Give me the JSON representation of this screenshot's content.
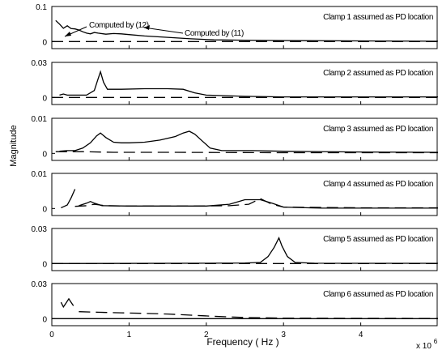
{
  "figure": {
    "ylabel": "Magnitude",
    "xlabel": "Frequency ( Hz )",
    "x_multiplier": "x 10",
    "x_multiplier_exp": "6"
  },
  "chart_data": [
    {
      "type": "line",
      "panel_label": "Clamp 1 assumed as PD location",
      "ylim": [
        -0.02,
        0.1
      ],
      "yticks": [
        {
          "v": 0,
          "t": "0"
        },
        {
          "v": 0.1,
          "t": "0.1"
        }
      ],
      "xlim": [
        0,
        5
      ],
      "xticks": [],
      "annotations": [
        {
          "text": "Computed by (12)"
        },
        {
          "text": "Computed by (11)"
        }
      ],
      "series": [
        {
          "style": "solid",
          "points": [
            [
              0.05,
              0.06
            ],
            [
              0.1,
              0.05
            ],
            [
              0.15,
              0.038
            ],
            [
              0.2,
              0.045
            ],
            [
              0.25,
              0.037
            ],
            [
              0.3,
              0.036
            ],
            [
              0.35,
              0.033
            ],
            [
              0.4,
              0.028
            ],
            [
              0.45,
              0.024
            ],
            [
              0.5,
              0.022
            ],
            [
              0.55,
              0.026
            ],
            [
              0.6,
              0.024
            ],
            [
              0.7,
              0.021
            ],
            [
              0.8,
              0.023
            ],
            [
              0.9,
              0.022
            ],
            [
              1.0,
              0.02
            ],
            [
              1.2,
              0.016
            ],
            [
              1.5,
              0.012
            ],
            [
              1.8,
              0.008
            ],
            [
              2.1,
              0.005
            ],
            [
              2.5,
              0.004
            ],
            [
              3.0,
              0.003
            ],
            [
              4.0,
              0.002
            ],
            [
              5.0,
              0.001
            ]
          ]
        },
        {
          "style": "dashed",
          "points": [
            [
              0.0,
              0.0
            ],
            [
              5.0,
              0.0
            ]
          ]
        }
      ]
    },
    {
      "type": "line",
      "panel_label": "Clamp 2 assumed as PD location",
      "ylim": [
        -0.006,
        0.03
      ],
      "yticks": [
        {
          "v": 0,
          "t": "0"
        },
        {
          "v": 0.03,
          "t": "0.03"
        }
      ],
      "xlim": [
        0,
        5
      ],
      "xticks": [],
      "series": [
        {
          "style": "solid",
          "points": [
            [
              0.1,
              0.002
            ],
            [
              0.15,
              0.003
            ],
            [
              0.2,
              0.002
            ],
            [
              0.3,
              0.002
            ],
            [
              0.45,
              0.002
            ],
            [
              0.55,
              0.006
            ],
            [
              0.6,
              0.016
            ],
            [
              0.63,
              0.022
            ],
            [
              0.67,
              0.013
            ],
            [
              0.72,
              0.007
            ],
            [
              0.9,
              0.007
            ],
            [
              1.2,
              0.0075
            ],
            [
              1.5,
              0.0075
            ],
            [
              1.7,
              0.007
            ],
            [
              1.85,
              0.004
            ],
            [
              2.0,
              0.002
            ],
            [
              2.5,
              0.001
            ],
            [
              3.0,
              0.0005
            ],
            [
              4.0,
              0.0005
            ],
            [
              5.0,
              0.0005
            ]
          ]
        },
        {
          "style": "dashed",
          "points": [
            [
              0.0,
              0.0
            ],
            [
              5.0,
              0.0
            ]
          ]
        }
      ]
    },
    {
      "type": "line",
      "panel_label": "Clamp 3 assumed as PD location",
      "ylim": [
        -0.002,
        0.01
      ],
      "yticks": [
        {
          "v": 0,
          "t": "0"
        },
        {
          "v": 0.01,
          "t": "0.01"
        }
      ],
      "xlim": [
        0,
        5
      ],
      "xticks": [],
      "series": [
        {
          "style": "solid",
          "points": [
            [
              0.1,
              0.0006
            ],
            [
              0.2,
              0.0008
            ],
            [
              0.3,
              0.0008
            ],
            [
              0.4,
              0.0015
            ],
            [
              0.5,
              0.003
            ],
            [
              0.58,
              0.005
            ],
            [
              0.63,
              0.0058
            ],
            [
              0.7,
              0.0045
            ],
            [
              0.8,
              0.0032
            ],
            [
              0.9,
              0.003
            ],
            [
              1.0,
              0.003
            ],
            [
              1.2,
              0.0032
            ],
            [
              1.4,
              0.0038
            ],
            [
              1.6,
              0.0048
            ],
            [
              1.7,
              0.0058
            ],
            [
              1.78,
              0.0063
            ],
            [
              1.85,
              0.0055
            ],
            [
              1.95,
              0.0035
            ],
            [
              2.05,
              0.0015
            ],
            [
              2.2,
              0.0008
            ],
            [
              2.6,
              0.0008
            ],
            [
              3.0,
              0.0006
            ],
            [
              4.0,
              0.0004
            ],
            [
              5.0,
              0.0003
            ]
          ]
        },
        {
          "style": "dashed",
          "points": [
            [
              0.05,
              0.0005
            ],
            [
              0.4,
              0.0005
            ],
            [
              0.8,
              0.0003
            ],
            [
              1.5,
              0.0003
            ],
            [
              3.0,
              0.0002
            ],
            [
              5.0,
              0.0002
            ]
          ]
        }
      ]
    },
    {
      "type": "line",
      "panel_label": "Clamp 4 assumed as PD location",
      "ylim": [
        -0.002,
        0.01
      ],
      "yticks": [
        {
          "v": 0,
          "t": "0"
        },
        {
          "v": 0.01,
          "t": "0.01"
        }
      ],
      "xlim": [
        0,
        5
      ],
      "xticks": [],
      "series": [
        {
          "style": "solid",
          "points": [
            [
              0.12,
              0.0002
            ],
            [
              0.15,
              0.0005
            ],
            [
              0.2,
              0.001
            ],
            [
              0.25,
              0.003
            ],
            [
              0.3,
              0.0055
            ]
          ]
        },
        {
          "style": "solid",
          "points": [
            [
              0.35,
              0.0008
            ],
            [
              0.45,
              0.0015
            ],
            [
              0.5,
              0.002
            ],
            [
              0.55,
              0.0015
            ],
            [
              0.65,
              0.0008
            ],
            [
              1.0,
              0.0007
            ],
            [
              1.5,
              0.0007
            ],
            [
              2.0,
              0.0007
            ],
            [
              2.3,
              0.0012
            ],
            [
              2.5,
              0.0025
            ],
            [
              2.7,
              0.0025
            ],
            [
              2.85,
              0.0015
            ],
            [
              3.0,
              0.0004
            ],
            [
              3.5,
              0.0001
            ],
            [
              4.0,
              0.0001
            ],
            [
              5.0,
              0.0001
            ]
          ]
        },
        {
          "style": "dashed",
          "points": [
            [
              0.3,
              0.0006
            ],
            [
              0.45,
              0.0008
            ],
            [
              0.55,
              0.0012
            ],
            [
              0.7,
              0.0008
            ],
            [
              1.0,
              0.0007
            ],
            [
              1.8,
              0.0007
            ],
            [
              2.3,
              0.0008
            ],
            [
              2.55,
              0.0012
            ],
            [
              2.7,
              0.0028
            ],
            [
              2.85,
              0.0012
            ],
            [
              3.0,
              0.0004
            ],
            [
              4.0,
              0.0002
            ],
            [
              5.0,
              0.0002
            ]
          ]
        }
      ]
    },
    {
      "type": "line",
      "panel_label": "Clamp 5 assumed as PD location",
      "ylim": [
        -0.006,
        0.03
      ],
      "yticks": [
        {
          "v": 0,
          "t": "0"
        },
        {
          "v": 0.03,
          "t": "0.03"
        }
      ],
      "xlim": [
        0,
        5
      ],
      "xticks": [],
      "series": [
        {
          "style": "solid",
          "points": [
            [
              0.0,
              0.0
            ],
            [
              2.0,
              0.0003
            ],
            [
              2.5,
              0.0005
            ],
            [
              2.7,
              0.001
            ],
            [
              2.8,
              0.006
            ],
            [
              2.88,
              0.014
            ],
            [
              2.94,
              0.022
            ],
            [
              2.98,
              0.015
            ],
            [
              3.05,
              0.006
            ],
            [
              3.15,
              0.001
            ],
            [
              3.4,
              0.0003
            ],
            [
              4.0,
              0.0002
            ],
            [
              5.0,
              0.0002
            ]
          ]
        },
        {
          "style": "dashed",
          "points": [
            [
              0.0,
              0.0
            ],
            [
              5.0,
              0.0
            ]
          ]
        }
      ]
    },
    {
      "type": "line",
      "panel_label": "Clamp 6 assumed as PD location",
      "ylim": [
        -0.006,
        0.03
      ],
      "yticks": [
        {
          "v": 0,
          "t": "0"
        },
        {
          "v": 0.03,
          "t": "0.03"
        }
      ],
      "xlim": [
        0,
        5
      ],
      "xticks": [
        {
          "v": 0,
          "t": "0"
        },
        {
          "v": 1,
          "t": "1"
        },
        {
          "v": 2,
          "t": "2"
        },
        {
          "v": 3,
          "t": "3"
        },
        {
          "v": 4,
          "t": "4"
        }
      ],
      "series": [
        {
          "style": "solid",
          "points": [
            [
              0.12,
              0.014
            ],
            [
              0.15,
              0.01
            ],
            [
              0.18,
              0.013
            ],
            [
              0.22,
              0.017
            ],
            [
              0.25,
              0.014
            ],
            [
              0.28,
              0.011
            ]
          ]
        },
        {
          "style": "solid",
          "points": [
            [
              0.0,
              0.0
            ],
            [
              5.0,
              0.0
            ]
          ]
        },
        {
          "style": "dashed",
          "points": [
            [
              0.35,
              0.006
            ],
            [
              0.6,
              0.0055
            ],
            [
              0.9,
              0.005
            ],
            [
              1.2,
              0.0045
            ],
            [
              1.5,
              0.004
            ],
            [
              1.8,
              0.003
            ],
            [
              2.1,
              0.002
            ],
            [
              2.5,
              0.001
            ],
            [
              3.0,
              0.0005
            ],
            [
              4.0,
              0.0003
            ],
            [
              5.0,
              0.0002
            ]
          ]
        }
      ]
    }
  ]
}
